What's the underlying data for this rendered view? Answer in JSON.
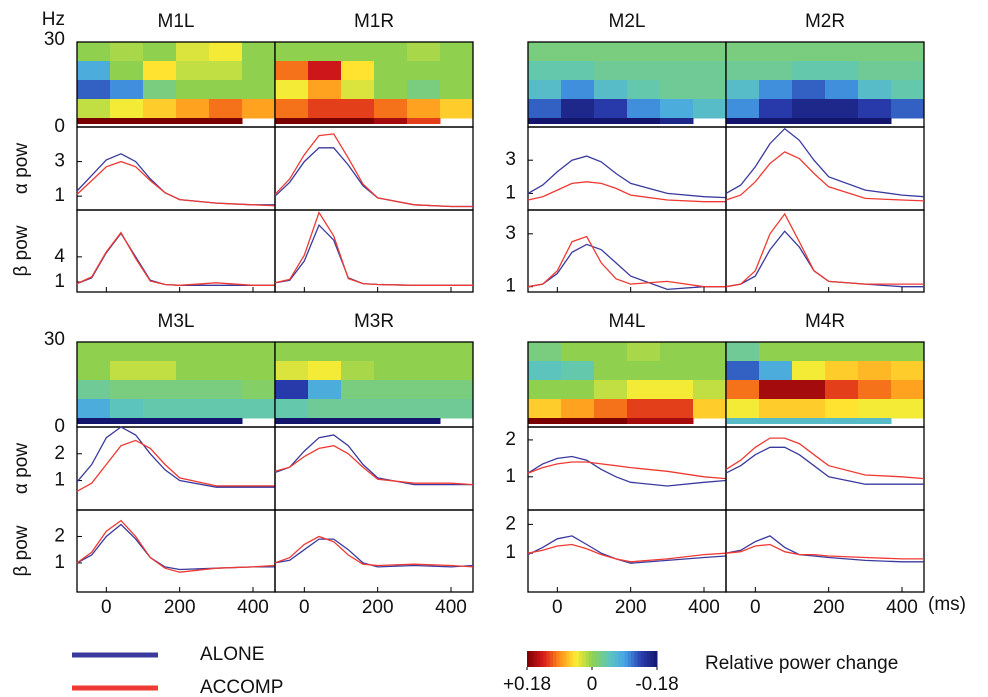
{
  "chart_data": {
    "type": "panel-grid",
    "x": [
      -80,
      -40,
      0,
      40,
      80,
      120,
      160,
      200,
      300,
      400,
      460
    ],
    "xlim": [
      -80,
      460
    ],
    "xticks": [
      0,
      200,
      400
    ],
    "x_unit": "(ms)",
    "freq_lim": [
      0,
      30
    ],
    "series": [
      {
        "name": "ALONE",
        "color": "#3a3a9e"
      },
      {
        "name": "ACCOMP",
        "color": "#ee3a33"
      }
    ],
    "colormap": [
      "#7a0000",
      "#d7191c",
      "#ff8c1a",
      "#ffee33",
      "#8fd14f",
      "#5fc7b8",
      "#46a6e8",
      "#2a3fb0",
      "#14166e"
    ],
    "colorbar": {
      "label": "Relative power change",
      "clim": [
        0.18,
        -0.18
      ],
      "ticks": [
        {
          "value": 0.18,
          "label": "+0.18"
        },
        0,
        -0.18
      ]
    },
    "groups": [
      {
        "freq_unit": "Hz",
        "freq_ticks": [
          0,
          30
        ],
        "alpha": {
          "label": "α pow",
          "ylim": [
            0.2,
            5
          ],
          "yticks": [
            1,
            3
          ]
        },
        "beta": {
          "label": "β pow",
          "ylim": [
            -0.2,
            9.6
          ],
          "yticks": [
            1,
            4
          ]
        },
        "x_labels": false,
        "panels": [
          {
            "title": "M1L",
            "heatmap": [
              [
                0,
                0.01,
                0,
                0.03,
                0.04,
                0
              ],
              [
                -0.08,
                0,
                0.05,
                0.02,
                0.02,
                0
              ],
              [
                -0.12,
                -0.1,
                -0.02,
                0,
                0,
                0
              ],
              [
                0.02,
                0.04,
                0.06,
                0.08,
                0.1,
                0.08
              ],
              [
                0.18,
                0.18,
                0.18,
                0.18,
                0.18,
                null
              ]
            ],
            "alpha": [
              [
                1.3,
                2.2,
                3.1,
                3.45,
                3.0,
                2.0,
                1.2,
                0.8,
                0.6,
                0.5,
                0.5
              ],
              [
                1.1,
                1.9,
                2.7,
                3.0,
                2.7,
                1.9,
                1.2,
                0.8,
                0.6,
                0.5,
                0.45
              ]
            ],
            "beta": [
              [
                0.8,
                1.5,
                4.5,
                6.8,
                4.0,
                1.2,
                0.7,
                0.6,
                0.6,
                0.6,
                0.6
              ],
              [
                0.8,
                1.6,
                4.6,
                6.9,
                3.8,
                1.1,
                0.7,
                0.6,
                0.9,
                0.6,
                0.6
              ]
            ]
          },
          {
            "title": "M1R",
            "heatmap": [
              [
                0,
                0,
                0,
                0,
                0.01,
                0
              ],
              [
                0.1,
                0.14,
                0.05,
                0,
                0,
                0
              ],
              [
                0.04,
                0.08,
                0.03,
                0,
                -0.02,
                0
              ],
              [
                0.1,
                0.12,
                0.12,
                0.1,
                0.08,
                0.06
              ],
              [
                0.18,
                0.18,
                0.18,
                0.16,
                0.12,
                null
              ]
            ],
            "alpha": [
              [
                1.0,
                1.8,
                3.0,
                3.8,
                3.8,
                2.8,
                1.6,
                0.9,
                0.5,
                0.4,
                0.4
              ],
              [
                1.1,
                2.0,
                3.4,
                4.5,
                4.6,
                3.2,
                1.7,
                0.9,
                0.5,
                0.4,
                0.4
              ]
            ],
            "beta": [
              [
                0.9,
                1.2,
                3.5,
                7.8,
                6.0,
                1.5,
                0.8,
                0.7,
                0.6,
                0.6,
                0.6
              ],
              [
                0.9,
                1.3,
                4.2,
                9.3,
                6.5,
                1.4,
                0.8,
                0.7,
                0.6,
                0.6,
                0.6
              ]
            ]
          }
        ]
      },
      {
        "alpha": {
          "ylim": [
            0,
            5
          ],
          "yticks": [
            1,
            3
          ]
        },
        "beta": {
          "ylim": [
            0.8,
            3.9
          ],
          "yticks": [
            1,
            3
          ]
        },
        "x_labels": false,
        "panels": [
          {
            "title": "M2L",
            "heatmap": [
              [
                -0.02,
                -0.02,
                -0.02,
                -0.02,
                -0.02,
                -0.02
              ],
              [
                -0.04,
                -0.04,
                -0.03,
                -0.03,
                -0.03,
                -0.03
              ],
              [
                -0.06,
                -0.1,
                -0.06,
                -0.04,
                -0.03,
                -0.03
              ],
              [
                -0.12,
                -0.16,
                -0.14,
                -0.1,
                -0.08,
                -0.06
              ],
              [
                -0.18,
                -0.18,
                -0.18,
                -0.18,
                -0.16,
                null
              ]
            ],
            "alpha": [
              [
                1.0,
                1.5,
                2.3,
                3.0,
                3.25,
                2.9,
                2.2,
                1.6,
                1.0,
                0.8,
                0.75
              ],
              [
                0.6,
                0.8,
                1.2,
                1.6,
                1.7,
                1.6,
                1.3,
                0.9,
                0.6,
                0.5,
                0.5
              ]
            ],
            "beta": [
              [
                1.0,
                1.1,
                1.5,
                2.3,
                2.6,
                2.4,
                1.9,
                1.4,
                0.9,
                1.0,
                1.0
              ],
              [
                1.0,
                1.1,
                1.6,
                2.7,
                2.9,
                1.9,
                1.3,
                1.1,
                1.2,
                1.0,
                1.0
              ]
            ]
          },
          {
            "title": "M2R",
            "heatmap": [
              [
                -0.02,
                -0.02,
                -0.02,
                -0.02,
                -0.02,
                -0.02
              ],
              [
                -0.03,
                -0.03,
                -0.04,
                -0.04,
                -0.03,
                -0.03
              ],
              [
                -0.06,
                -0.1,
                -0.12,
                -0.1,
                -0.06,
                -0.04
              ],
              [
                -0.1,
                -0.14,
                -0.16,
                -0.16,
                -0.14,
                -0.12
              ],
              [
                -0.18,
                -0.18,
                -0.18,
                -0.18,
                -0.18,
                null
              ]
            ],
            "alpha": [
              [
                1.0,
                1.5,
                2.6,
                4.0,
                4.9,
                4.2,
                3.0,
                2.0,
                1.2,
                0.9,
                0.8
              ],
              [
                0.6,
                0.9,
                1.7,
                2.8,
                3.5,
                3.1,
                2.2,
                1.4,
                0.7,
                0.6,
                0.55
              ]
            ],
            "beta": [
              [
                1.0,
                1.1,
                1.4,
                2.4,
                3.1,
                2.5,
                1.6,
                1.2,
                1.1,
                1.0,
                1.0
              ],
              [
                1.0,
                1.1,
                1.6,
                3.0,
                3.75,
                2.7,
                1.6,
                1.2,
                1.1,
                1.1,
                1.1
              ]
            ]
          }
        ]
      },
      {
        "freq_ticks": [
          0,
          30
        ],
        "alpha": {
          "label": "α pow",
          "ylim": [
            -0.1,
            3
          ],
          "yticks": [
            1,
            2
          ]
        },
        "beta": {
          "label": "β pow",
          "ylim": [
            -0.1,
            3
          ],
          "yticks": [
            1,
            2
          ]
        },
        "x_labels": true,
        "panels": [
          {
            "title": "M3L",
            "heatmap": [
              [
                0,
                0,
                0,
                0,
                0,
                0
              ],
              [
                0,
                0.02,
                0.02,
                0,
                0,
                0
              ],
              [
                -0.03,
                -0.02,
                -0.02,
                -0.02,
                -0.02,
                -0.01
              ],
              [
                -0.08,
                -0.05,
                -0.04,
                -0.04,
                -0.04,
                -0.04
              ],
              [
                -0.18,
                -0.18,
                -0.18,
                -0.18,
                -0.18,
                null
              ]
            ],
            "alpha": [
              [
                0.95,
                1.6,
                2.6,
                3.0,
                2.7,
                2.0,
                1.4,
                1.0,
                0.75,
                0.75,
                0.75
              ],
              [
                0.6,
                0.9,
                1.6,
                2.3,
                2.5,
                2.2,
                1.6,
                1.1,
                0.8,
                0.8,
                0.8
              ]
            ],
            "beta": [
              [
                1.0,
                1.3,
                2.0,
                2.45,
                1.9,
                1.2,
                0.85,
                0.75,
                0.8,
                0.85,
                0.85
              ],
              [
                1.0,
                1.4,
                2.2,
                2.6,
                2.0,
                1.2,
                0.8,
                0.65,
                0.8,
                0.85,
                0.9
              ]
            ]
          },
          {
            "title": "M3R",
            "heatmap": [
              [
                0,
                0,
                0,
                0,
                0,
                0
              ],
              [
                0.03,
                0.04,
                0.01,
                0,
                0,
                0
              ],
              [
                -0.14,
                -0.08,
                -0.02,
                -0.02,
                -0.02,
                -0.02
              ],
              [
                -0.04,
                -0.03,
                -0.03,
                -0.03,
                -0.03,
                -0.03
              ],
              [
                -0.18,
                -0.18,
                -0.18,
                -0.18,
                -0.18,
                null
              ]
            ],
            "alpha": [
              [
                1.3,
                1.5,
                2.1,
                2.6,
                2.7,
                2.3,
                1.6,
                1.1,
                0.85,
                0.85,
                0.85
              ],
              [
                1.35,
                1.5,
                1.9,
                2.2,
                2.3,
                2.0,
                1.5,
                1.05,
                0.9,
                0.9,
                0.85
              ]
            ],
            "beta": [
              [
                1.0,
                1.1,
                1.5,
                1.9,
                1.9,
                1.5,
                1.0,
                0.85,
                0.9,
                0.85,
                0.9
              ],
              [
                1.0,
                1.2,
                1.7,
                2.0,
                1.8,
                1.3,
                0.95,
                0.9,
                0.95,
                0.9,
                0.85
              ]
            ]
          }
        ]
      },
      {
        "alpha": {
          "ylim": [
            0.1,
            2.35
          ],
          "yticks": [
            1,
            2
          ]
        },
        "beta": {
          "ylim": [
            -0.35,
            2.5
          ],
          "yticks": [
            1,
            2
          ]
        },
        "x_labels": true,
        "panels": [
          {
            "title": "M4L",
            "heatmap": [
              [
                -0.02,
                0,
                0,
                0.01,
                0,
                0
              ],
              [
                -0.05,
                -0.04,
                0,
                0,
                0,
                0
              ],
              [
                0,
                0,
                0.02,
                0.04,
                0.04,
                0.02
              ],
              [
                0.06,
                0.08,
                0.1,
                0.12,
                0.12,
                0.06
              ],
              [
                0.18,
                0.18,
                0.18,
                0.16,
                0.16,
                null
              ]
            ],
            "alpha": [
              [
                1.1,
                1.35,
                1.5,
                1.55,
                1.45,
                1.2,
                1.0,
                0.85,
                0.75,
                0.85,
                0.9
              ],
              [
                1.1,
                1.25,
                1.35,
                1.4,
                1.4,
                1.35,
                1.3,
                1.25,
                1.15,
                1.0,
                0.95
              ]
            ],
            "beta": [
              [
                0.95,
                1.2,
                1.5,
                1.6,
                1.3,
                1.0,
                0.8,
                0.65,
                0.75,
                0.85,
                0.9
              ],
              [
                1.0,
                1.1,
                1.25,
                1.3,
                1.15,
                0.95,
                0.8,
                0.7,
                0.8,
                0.95,
                1.0
              ]
            ]
          },
          {
            "title": "M4R",
            "heatmap": [
              [
                -0.03,
                0,
                0,
                0,
                0,
                0
              ],
              [
                -0.12,
                -0.08,
                0.04,
                0.06,
                0.07,
                0.06
              ],
              [
                0.1,
                0.16,
                0.16,
                0.12,
                0.1,
                0.08
              ],
              [
                0.04,
                0.06,
                0.06,
                0.05,
                0.04,
                0.04
              ],
              [
                -0.06,
                -0.06,
                -0.06,
                -0.06,
                -0.06,
                null
              ]
            ],
            "alpha": [
              [
                1.1,
                1.3,
                1.6,
                1.8,
                1.8,
                1.6,
                1.3,
                1.0,
                0.8,
                0.8,
                0.8
              ],
              [
                1.2,
                1.45,
                1.8,
                2.05,
                2.05,
                1.9,
                1.6,
                1.3,
                1.05,
                1.0,
                0.95
              ]
            ],
            "beta": [
              [
                1.0,
                1.1,
                1.4,
                1.6,
                1.2,
                0.95,
                0.9,
                0.85,
                0.75,
                0.7,
                0.7
              ],
              [
                1.0,
                1.05,
                1.25,
                1.3,
                1.05,
                0.95,
                0.95,
                0.9,
                0.85,
                0.8,
                0.8
              ]
            ]
          }
        ]
      }
    ]
  }
}
